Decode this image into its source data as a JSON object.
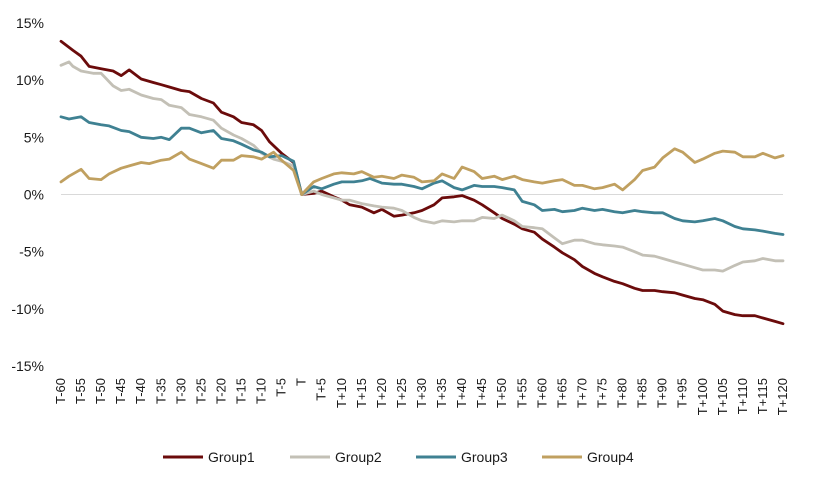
{
  "chart_data": {
    "type": "line",
    "title": "",
    "xlabel": "",
    "ylabel": "",
    "ylim": [
      -15,
      15
    ],
    "y_ticks": [
      15,
      10,
      5,
      0,
      -5,
      -10,
      -15
    ],
    "y_tick_format": "percent",
    "x_ticks": [
      "T-60",
      "T-55",
      "T-50",
      "T-45",
      "T-40",
      "T-35",
      "T-30",
      "T-25",
      "T-20",
      "T-15",
      "T-10",
      "T-5",
      "T",
      "T+5",
      "T+10",
      "T+15",
      "T+20",
      "T+25",
      "T+30",
      "T+35",
      "T+40",
      "T+45",
      "T+50",
      "T+55",
      "T+60",
      "T+65",
      "T+70",
      "T+75",
      "T+80",
      "T+85",
      "T+90",
      "T+95",
      "T+100",
      "T+105",
      "T+110",
      "T+115",
      "T+120"
    ],
    "x_range": [
      -60,
      120
    ],
    "legend_position": "bottom",
    "grid": false,
    "series": [
      {
        "name": "Group1",
        "color": "#6b0b0b",
        "points": [
          [
            -60,
            13.4
          ],
          [
            -57,
            12.6
          ],
          [
            -55,
            12.1
          ],
          [
            -53,
            11.2
          ],
          [
            -50,
            11.0
          ],
          [
            -47,
            10.8
          ],
          [
            -45,
            10.4
          ],
          [
            -43,
            10.9
          ],
          [
            -40,
            10.1
          ],
          [
            -37,
            9.8
          ],
          [
            -35,
            9.6
          ],
          [
            -33,
            9.4
          ],
          [
            -30,
            9.1
          ],
          [
            -28,
            9.0
          ],
          [
            -25,
            8.4
          ],
          [
            -22,
            8.0
          ],
          [
            -20,
            7.2
          ],
          [
            -17,
            6.8
          ],
          [
            -15,
            6.3
          ],
          [
            -12,
            6.1
          ],
          [
            -10,
            5.6
          ],
          [
            -8,
            4.6
          ],
          [
            -5,
            3.6
          ],
          [
            -2,
            2.8
          ],
          [
            0,
            0.0
          ],
          [
            3,
            0.1
          ],
          [
            5,
            0.3
          ],
          [
            8,
            -0.2
          ],
          [
            10,
            -0.5
          ],
          [
            12,
            -0.9
          ],
          [
            15,
            -1.1
          ],
          [
            18,
            -1.6
          ],
          [
            20,
            -1.3
          ],
          [
            23,
            -1.9
          ],
          [
            25,
            -1.8
          ],
          [
            28,
            -1.6
          ],
          [
            30,
            -1.4
          ],
          [
            33,
            -0.9
          ],
          [
            35,
            -0.3
          ],
          [
            38,
            -0.2
          ],
          [
            40,
            -0.1
          ],
          [
            43,
            -0.5
          ],
          [
            45,
            -0.9
          ],
          [
            48,
            -1.6
          ],
          [
            50,
            -2.1
          ],
          [
            53,
            -2.6
          ],
          [
            55,
            -3.0
          ],
          [
            58,
            -3.3
          ],
          [
            60,
            -3.9
          ],
          [
            63,
            -4.6
          ],
          [
            65,
            -5.1
          ],
          [
            68,
            -5.7
          ],
          [
            70,
            -6.3
          ],
          [
            73,
            -6.9
          ],
          [
            75,
            -7.2
          ],
          [
            78,
            -7.6
          ],
          [
            80,
            -7.8
          ],
          [
            83,
            -8.2
          ],
          [
            85,
            -8.4
          ],
          [
            88,
            -8.4
          ],
          [
            90,
            -8.5
          ],
          [
            93,
            -8.6
          ],
          [
            95,
            -8.8
          ],
          [
            98,
            -9.1
          ],
          [
            100,
            -9.2
          ],
          [
            103,
            -9.6
          ],
          [
            105,
            -10.2
          ],
          [
            108,
            -10.5
          ],
          [
            110,
            -10.6
          ],
          [
            113,
            -10.6
          ],
          [
            115,
            -10.8
          ],
          [
            118,
            -11.1
          ],
          [
            120,
            -11.3
          ]
        ]
      },
      {
        "name": "Group2",
        "color": "#c3c0b6",
        "points": [
          [
            -60,
            11.3
          ],
          [
            -58,
            11.6
          ],
          [
            -57,
            11.2
          ],
          [
            -55,
            10.8
          ],
          [
            -52,
            10.6
          ],
          [
            -50,
            10.6
          ],
          [
            -47,
            9.5
          ],
          [
            -45,
            9.1
          ],
          [
            -43,
            9.2
          ],
          [
            -40,
            8.7
          ],
          [
            -37,
            8.4
          ],
          [
            -35,
            8.3
          ],
          [
            -33,
            7.8
          ],
          [
            -30,
            7.6
          ],
          [
            -28,
            7.0
          ],
          [
            -25,
            6.8
          ],
          [
            -22,
            6.5
          ],
          [
            -20,
            5.8
          ],
          [
            -17,
            5.2
          ],
          [
            -15,
            4.9
          ],
          [
            -12,
            4.3
          ],
          [
            -10,
            3.6
          ],
          [
            -7,
            3.1
          ],
          [
            -5,
            2.9
          ],
          [
            -2,
            2.5
          ],
          [
            0,
            0.0
          ],
          [
            3,
            0.3
          ],
          [
            5,
            0.0
          ],
          [
            8,
            -0.3
          ],
          [
            10,
            -0.5
          ],
          [
            12,
            -0.5
          ],
          [
            15,
            -0.8
          ],
          [
            18,
            -1.0
          ],
          [
            20,
            -1.1
          ],
          [
            23,
            -1.2
          ],
          [
            25,
            -1.4
          ],
          [
            28,
            -2.0
          ],
          [
            30,
            -2.3
          ],
          [
            33,
            -2.5
          ],
          [
            35,
            -2.3
          ],
          [
            38,
            -2.4
          ],
          [
            40,
            -2.3
          ],
          [
            43,
            -2.3
          ],
          [
            45,
            -2.0
          ],
          [
            48,
            -2.1
          ],
          [
            50,
            -1.8
          ],
          [
            53,
            -2.3
          ],
          [
            55,
            -2.8
          ],
          [
            58,
            -2.9
          ],
          [
            60,
            -3.0
          ],
          [
            63,
            -3.8
          ],
          [
            65,
            -4.3
          ],
          [
            68,
            -4.0
          ],
          [
            70,
            -4.0
          ],
          [
            73,
            -4.3
          ],
          [
            75,
            -4.4
          ],
          [
            78,
            -4.5
          ],
          [
            80,
            -4.6
          ],
          [
            83,
            -5.0
          ],
          [
            85,
            -5.3
          ],
          [
            88,
            -5.4
          ],
          [
            90,
            -5.6
          ],
          [
            93,
            -5.9
          ],
          [
            95,
            -6.1
          ],
          [
            98,
            -6.4
          ],
          [
            100,
            -6.6
          ],
          [
            103,
            -6.6
          ],
          [
            105,
            -6.7
          ],
          [
            108,
            -6.2
          ],
          [
            110,
            -5.9
          ],
          [
            113,
            -5.8
          ],
          [
            115,
            -5.6
          ],
          [
            118,
            -5.8
          ],
          [
            120,
            -5.8
          ]
        ]
      },
      {
        "name": "Group3",
        "color": "#3f8192",
        "points": [
          [
            -60,
            6.8
          ],
          [
            -58,
            6.6
          ],
          [
            -55,
            6.8
          ],
          [
            -53,
            6.3
          ],
          [
            -50,
            6.1
          ],
          [
            -48,
            6.0
          ],
          [
            -45,
            5.6
          ],
          [
            -43,
            5.5
          ],
          [
            -40,
            5.0
          ],
          [
            -37,
            4.9
          ],
          [
            -35,
            5.0
          ],
          [
            -33,
            4.8
          ],
          [
            -30,
            5.8
          ],
          [
            -28,
            5.8
          ],
          [
            -25,
            5.4
          ],
          [
            -22,
            5.6
          ],
          [
            -20,
            4.9
          ],
          [
            -17,
            4.7
          ],
          [
            -15,
            4.4
          ],
          [
            -12,
            3.9
          ],
          [
            -10,
            3.7
          ],
          [
            -8,
            3.3
          ],
          [
            -5,
            3.4
          ],
          [
            -2,
            2.9
          ],
          [
            0,
            0.0
          ],
          [
            3,
            0.7
          ],
          [
            5,
            0.5
          ],
          [
            8,
            0.9
          ],
          [
            10,
            1.1
          ],
          [
            13,
            1.1
          ],
          [
            15,
            1.2
          ],
          [
            17,
            1.4
          ],
          [
            20,
            1.0
          ],
          [
            23,
            0.9
          ],
          [
            25,
            0.9
          ],
          [
            28,
            0.7
          ],
          [
            30,
            0.5
          ],
          [
            33,
            1.0
          ],
          [
            35,
            1.2
          ],
          [
            38,
            0.6
          ],
          [
            40,
            0.4
          ],
          [
            43,
            0.8
          ],
          [
            45,
            0.7
          ],
          [
            48,
            0.7
          ],
          [
            50,
            0.6
          ],
          [
            53,
            0.4
          ],
          [
            55,
            -0.6
          ],
          [
            58,
            -0.9
          ],
          [
            60,
            -1.4
          ],
          [
            63,
            -1.3
          ],
          [
            65,
            -1.5
          ],
          [
            68,
            -1.4
          ],
          [
            70,
            -1.2
          ],
          [
            73,
            -1.4
          ],
          [
            75,
            -1.3
          ],
          [
            78,
            -1.5
          ],
          [
            80,
            -1.6
          ],
          [
            83,
            -1.4
          ],
          [
            85,
            -1.5
          ],
          [
            88,
            -1.6
          ],
          [
            90,
            -1.6
          ],
          [
            93,
            -2.1
          ],
          [
            95,
            -2.3
          ],
          [
            98,
            -2.4
          ],
          [
            100,
            -2.3
          ],
          [
            103,
            -2.1
          ],
          [
            105,
            -2.3
          ],
          [
            108,
            -2.8
          ],
          [
            110,
            -3.0
          ],
          [
            113,
            -3.1
          ],
          [
            115,
            -3.2
          ],
          [
            118,
            -3.4
          ],
          [
            120,
            -3.5
          ]
        ]
      },
      {
        "name": "Group4",
        "color": "#c0a060",
        "points": [
          [
            -60,
            1.1
          ],
          [
            -58,
            1.6
          ],
          [
            -55,
            2.2
          ],
          [
            -53,
            1.4
          ],
          [
            -50,
            1.3
          ],
          [
            -48,
            1.8
          ],
          [
            -45,
            2.3
          ],
          [
            -43,
            2.5
          ],
          [
            -40,
            2.8
          ],
          [
            -38,
            2.7
          ],
          [
            -35,
            3.0
          ],
          [
            -33,
            3.1
          ],
          [
            -30,
            3.7
          ],
          [
            -28,
            3.1
          ],
          [
            -25,
            2.7
          ],
          [
            -22,
            2.3
          ],
          [
            -20,
            3.0
          ],
          [
            -17,
            3.0
          ],
          [
            -15,
            3.4
          ],
          [
            -12,
            3.3
          ],
          [
            -10,
            3.1
          ],
          [
            -7,
            3.7
          ],
          [
            -5,
            3.0
          ],
          [
            -2,
            2.1
          ],
          [
            0,
            0.0
          ],
          [
            3,
            1.1
          ],
          [
            5,
            1.4
          ],
          [
            8,
            1.8
          ],
          [
            10,
            1.9
          ],
          [
            13,
            1.8
          ],
          [
            15,
            2.0
          ],
          [
            18,
            1.5
          ],
          [
            20,
            1.6
          ],
          [
            23,
            1.4
          ],
          [
            25,
            1.7
          ],
          [
            28,
            1.5
          ],
          [
            30,
            1.1
          ],
          [
            33,
            1.2
          ],
          [
            35,
            1.8
          ],
          [
            38,
            1.4
          ],
          [
            40,
            2.4
          ],
          [
            43,
            2.0
          ],
          [
            45,
            1.4
          ],
          [
            48,
            1.6
          ],
          [
            50,
            1.3
          ],
          [
            53,
            1.6
          ],
          [
            55,
            1.3
          ],
          [
            58,
            1.1
          ],
          [
            60,
            1.0
          ],
          [
            63,
            1.2
          ],
          [
            65,
            1.3
          ],
          [
            68,
            0.8
          ],
          [
            70,
            0.8
          ],
          [
            73,
            0.5
          ],
          [
            75,
            0.6
          ],
          [
            78,
            0.9
          ],
          [
            80,
            0.4
          ],
          [
            83,
            1.3
          ],
          [
            85,
            2.1
          ],
          [
            88,
            2.4
          ],
          [
            90,
            3.2
          ],
          [
            93,
            4.0
          ],
          [
            95,
            3.7
          ],
          [
            98,
            2.8
          ],
          [
            100,
            3.1
          ],
          [
            103,
            3.6
          ],
          [
            105,
            3.8
          ],
          [
            108,
            3.7
          ],
          [
            110,
            3.3
          ],
          [
            113,
            3.3
          ],
          [
            115,
            3.6
          ],
          [
            118,
            3.2
          ],
          [
            120,
            3.4
          ]
        ]
      }
    ]
  }
}
